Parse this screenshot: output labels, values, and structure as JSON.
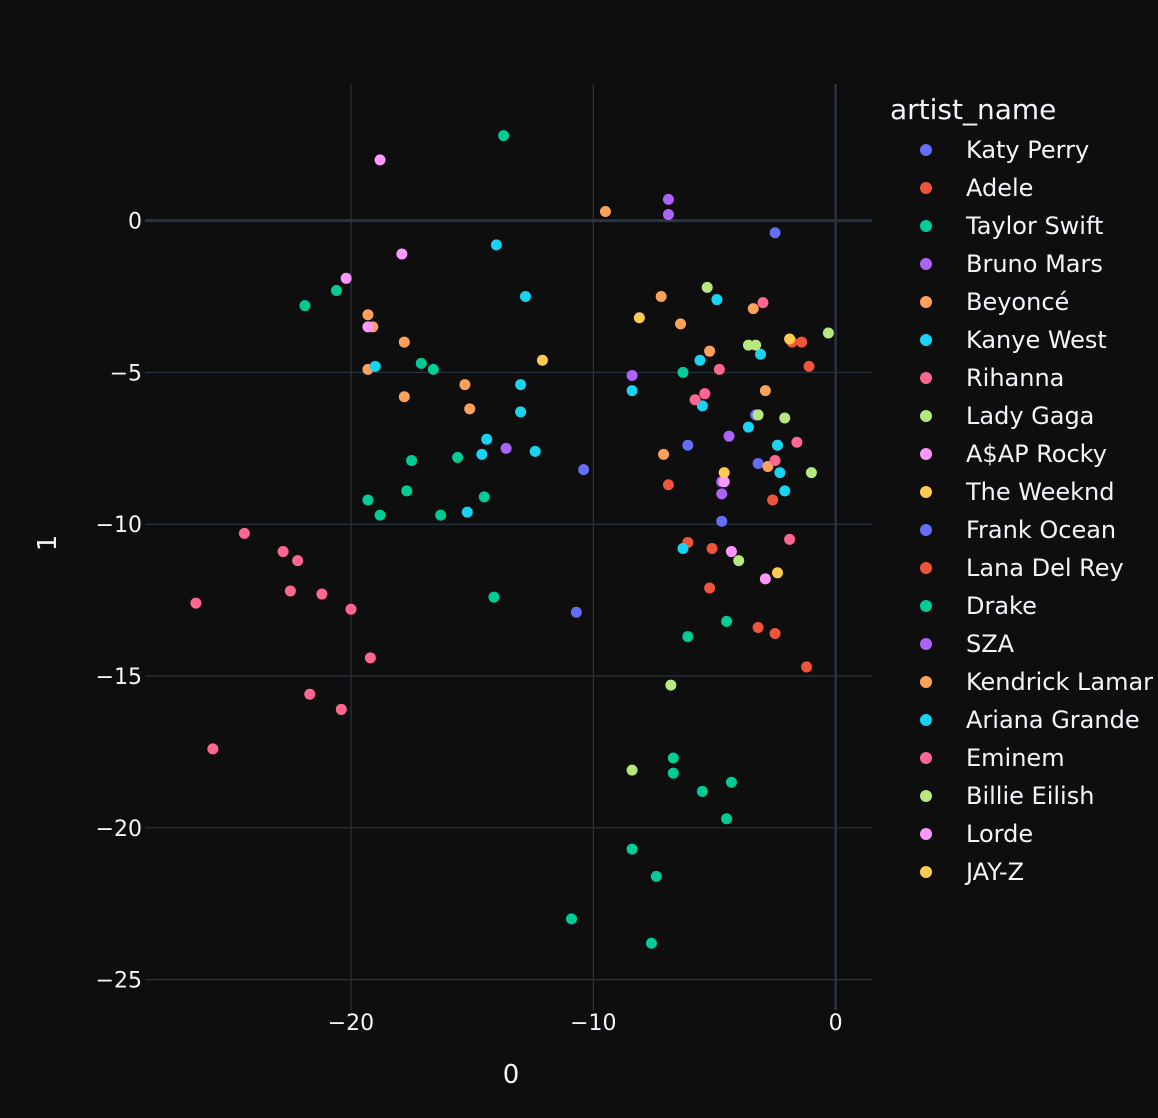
{
  "chart_data": {
    "type": "scatter",
    "xlabel": "0",
    "ylabel": "1",
    "xlim": [
      -28.5,
      1.5
    ],
    "ylim": [
      -26,
      4.5
    ],
    "xticks": [
      -20,
      -10,
      0
    ],
    "yticks": [
      0,
      -5,
      -10,
      -15,
      -20,
      -25
    ],
    "tick_labels_x": [
      "−20",
      "−10",
      "0"
    ],
    "tick_labels_y": [
      "0",
      "−5",
      "−10",
      "−15",
      "−20",
      "−25"
    ],
    "grid": true,
    "legend_title": "artist_name",
    "legend_position": "right",
    "series": [
      {
        "name": "Katy Perry",
        "color": "#636efa",
        "points": [
          [
            -2.5,
            -0.4
          ],
          [
            -6.1,
            -7.4
          ],
          [
            -3.2,
            -8.0
          ],
          [
            -3.3,
            -6.4
          ],
          [
            -10.4,
            -8.2
          ],
          [
            -4.7,
            -9.9
          ],
          [
            -10.7,
            -12.9
          ]
        ]
      },
      {
        "name": "Adele",
        "color": "#ef553b",
        "points": [
          [
            -1.4,
            -4.0
          ],
          [
            -1.8,
            -4.0
          ],
          [
            -1.1,
            -4.8
          ],
          [
            -6.9,
            -8.7
          ],
          [
            -2.6,
            -9.2
          ],
          [
            -6.1,
            -10.6
          ],
          [
            -5.1,
            -10.8
          ],
          [
            -5.2,
            -12.1
          ],
          [
            -3.2,
            -13.4
          ],
          [
            -2.5,
            -13.6
          ],
          [
            -1.2,
            -14.7
          ],
          [
            -2.4,
            -7.4
          ]
        ]
      },
      {
        "name": "Taylor Swift",
        "color": "#00cc96",
        "points": [
          [
            -13.7,
            2.8
          ],
          [
            -20.6,
            -2.3
          ],
          [
            -21.9,
            -2.8
          ],
          [
            -17.1,
            -4.7
          ],
          [
            -16.6,
            -4.9
          ],
          [
            -6.3,
            -5.0
          ],
          [
            -17.5,
            -7.9
          ],
          [
            -15.6,
            -7.8
          ],
          [
            -17.7,
            -8.9
          ],
          [
            -19.3,
            -9.2
          ],
          [
            -18.8,
            -9.7
          ],
          [
            -16.3,
            -9.7
          ],
          [
            -14.5,
            -9.1
          ],
          [
            -14.1,
            -12.4
          ],
          [
            -4.5,
            -13.2
          ],
          [
            -6.1,
            -13.7
          ]
        ]
      },
      {
        "name": "Bruno Mars",
        "color": "#ab63fa",
        "points": [
          [
            -6.9,
            0.7
          ],
          [
            -6.9,
            0.2
          ],
          [
            -8.4,
            -5.1
          ],
          [
            -4.4,
            -7.1
          ],
          [
            -4.7,
            -8.6
          ],
          [
            -4.7,
            -9.0
          ],
          [
            -13.6,
            -7.5
          ]
        ]
      },
      {
        "name": "Beyoncé",
        "color": "#ffa15a",
        "points": [
          [
            -9.5,
            0.3
          ],
          [
            -7.2,
            -2.5
          ],
          [
            -6.4,
            -3.4
          ],
          [
            -3.4,
            -2.9
          ],
          [
            -5.2,
            -4.3
          ],
          [
            -19.3,
            -3.1
          ],
          [
            -19.1,
            -3.5
          ],
          [
            -17.8,
            -4.0
          ],
          [
            -19.3,
            -4.9
          ],
          [
            -15.3,
            -5.4
          ],
          [
            -17.8,
            -5.8
          ],
          [
            -15.1,
            -6.2
          ],
          [
            -7.1,
            -7.7
          ],
          [
            -2.9,
            -5.6
          ],
          [
            -2.8,
            -8.1
          ]
        ]
      },
      {
        "name": "Kanye West",
        "color": "#19d3f3",
        "points": [
          [
            -14.0,
            -0.8
          ],
          [
            -12.8,
            -2.5
          ],
          [
            -4.9,
            -2.6
          ],
          [
            -3.1,
            -4.4
          ],
          [
            -5.6,
            -4.6
          ],
          [
            -19.0,
            -4.8
          ],
          [
            -13.0,
            -5.4
          ],
          [
            -8.4,
            -5.6
          ],
          [
            -5.5,
            -6.1
          ],
          [
            -13.0,
            -6.3
          ],
          [
            -3.6,
            -6.8
          ],
          [
            -14.4,
            -7.2
          ],
          [
            -14.6,
            -7.7
          ],
          [
            -12.4,
            -7.6
          ],
          [
            -2.4,
            -7.4
          ],
          [
            -2.3,
            -8.3
          ],
          [
            -2.1,
            -8.9
          ],
          [
            -15.2,
            -9.6
          ],
          [
            -6.3,
            -10.8
          ]
        ]
      },
      {
        "name": "Rihanna",
        "color": "#ff6692",
        "points": [
          [
            -3.0,
            -2.7
          ],
          [
            -4.8,
            -4.9
          ],
          [
            -5.4,
            -5.7
          ],
          [
            -5.8,
            -5.9
          ],
          [
            -1.6,
            -7.3
          ],
          [
            -2.5,
            -7.9
          ],
          [
            -24.4,
            -10.3
          ],
          [
            -22.8,
            -10.9
          ],
          [
            -22.2,
            -11.2
          ],
          [
            -22.5,
            -12.2
          ],
          [
            -21.2,
            -12.3
          ],
          [
            -26.4,
            -12.6
          ],
          [
            -20.0,
            -12.8
          ],
          [
            -19.2,
            -14.4
          ],
          [
            -21.7,
            -15.6
          ],
          [
            -20.4,
            -16.1
          ],
          [
            -25.7,
            -17.4
          ],
          [
            -1.9,
            -10.5
          ]
        ]
      },
      {
        "name": "Lady Gaga",
        "color": "#b6e880",
        "points": [
          [
            -5.3,
            -2.2
          ],
          [
            -0.3,
            -3.7
          ],
          [
            -3.6,
            -4.1
          ],
          [
            -3.3,
            -4.1
          ],
          [
            -3.2,
            -6.4
          ],
          [
            -2.1,
            -6.5
          ],
          [
            -1.0,
            -8.3
          ],
          [
            -4.0,
            -11.2
          ],
          [
            -6.8,
            -15.3
          ],
          [
            -8.4,
            -18.1
          ]
        ]
      },
      {
        "name": "A$AP Rocky",
        "color": "#ff97ff",
        "points": [
          [
            -18.8,
            2.0
          ],
          [
            -17.9,
            -1.1
          ],
          [
            -20.2,
            -1.9
          ],
          [
            -19.3,
            -3.5
          ],
          [
            -4.6,
            -8.6
          ],
          [
            -4.3,
            -10.9
          ],
          [
            -2.9,
            -11.8
          ]
        ]
      },
      {
        "name": "The Weeknd",
        "color": "#fecb52",
        "points": [
          [
            -8.1,
            -3.2
          ],
          [
            -12.1,
            -4.6
          ],
          [
            -1.9,
            -3.9
          ],
          [
            -4.6,
            -8.3
          ],
          [
            -2.4,
            -11.6
          ]
        ]
      },
      {
        "name": "Frank Ocean",
        "color": "#636efa",
        "points": []
      },
      {
        "name": "Lana Del Rey",
        "color": "#ef553b",
        "points": []
      },
      {
        "name": "Drake",
        "color": "#00cc96",
        "points": [
          [
            -6.7,
            -17.7
          ],
          [
            -6.7,
            -18.2
          ],
          [
            -5.5,
            -18.8
          ],
          [
            -4.3,
            -18.5
          ],
          [
            -4.5,
            -19.7
          ],
          [
            -8.4,
            -20.7
          ],
          [
            -7.4,
            -21.6
          ],
          [
            -10.9,
            -23.0
          ],
          [
            -7.6,
            -23.8
          ]
        ]
      },
      {
        "name": "SZA",
        "color": "#ab63fa",
        "points": []
      },
      {
        "name": "Kendrick Lamar",
        "color": "#ffa15a",
        "points": []
      },
      {
        "name": "Ariana Grande",
        "color": "#19d3f3",
        "points": []
      },
      {
        "name": "Eminem",
        "color": "#ff6692",
        "points": []
      },
      {
        "name": "Billie Eilish",
        "color": "#b6e880",
        "points": []
      },
      {
        "name": "Lorde",
        "color": "#ff97ff",
        "points": []
      },
      {
        "name": "JAY-Z",
        "color": "#fecb52",
        "points": []
      }
    ]
  }
}
